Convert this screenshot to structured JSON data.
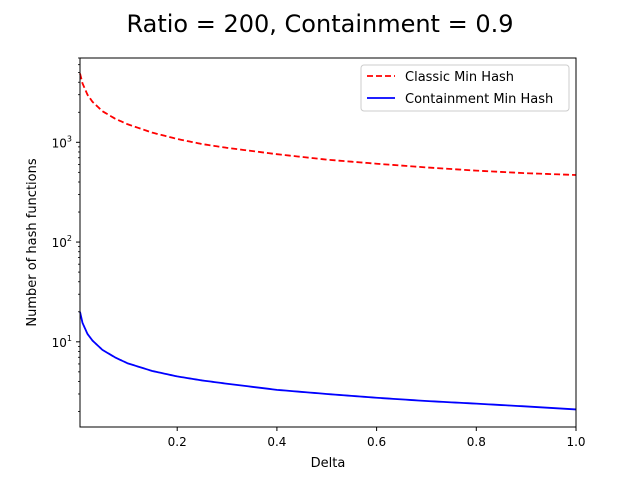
{
  "chart_data": {
    "type": "line",
    "title": "Ratio = 200, Containment = 0.9",
    "xlabel": "Delta",
    "ylabel": "Number of hash functions",
    "yscale": "log",
    "xlim": [
      0.005,
      1.0
    ],
    "ylim": [
      1.4,
      7000
    ],
    "x_ticks": [
      {
        "value": 0.2,
        "label": "0.2"
      },
      {
        "value": 0.4,
        "label": "0.4"
      },
      {
        "value": 0.6,
        "label": "0.6"
      },
      {
        "value": 0.8,
        "label": "0.8"
      },
      {
        "value": 1.0,
        "label": "1.0"
      }
    ],
    "y_ticks": [
      {
        "value": 10,
        "base": "10",
        "exp": "1"
      },
      {
        "value": 100,
        "base": "10",
        "exp": "2"
      },
      {
        "value": 1000,
        "base": "10",
        "exp": "3"
      }
    ],
    "grid": false,
    "legend": {
      "position": "top-right"
    },
    "series": [
      {
        "name": "Classic Min Hash",
        "color": "#ff0000",
        "dash": "dashed",
        "x": [
          0.005,
          0.01,
          0.02,
          0.03,
          0.05,
          0.075,
          0.1,
          0.15,
          0.2,
          0.25,
          0.3,
          0.4,
          0.5,
          0.6,
          0.7,
          0.8,
          0.9,
          1.0
        ],
        "y": [
          4900,
          3900,
          3000,
          2550,
          2050,
          1730,
          1520,
          1250,
          1080,
          960,
          880,
          760,
          670,
          610,
          560,
          520,
          490,
          470
        ]
      },
      {
        "name": "Containment Min Hash",
        "color": "#0000ff",
        "dash": "solid",
        "x": [
          0.005,
          0.01,
          0.02,
          0.03,
          0.05,
          0.075,
          0.1,
          0.15,
          0.2,
          0.25,
          0.3,
          0.4,
          0.5,
          0.6,
          0.7,
          0.8,
          0.9,
          1.0
        ],
        "y": [
          20,
          15.5,
          12.0,
          10.3,
          8.3,
          7.0,
          6.1,
          5.1,
          4.5,
          4.1,
          3.8,
          3.3,
          3.0,
          2.75,
          2.55,
          2.4,
          2.25,
          2.1
        ]
      }
    ]
  }
}
